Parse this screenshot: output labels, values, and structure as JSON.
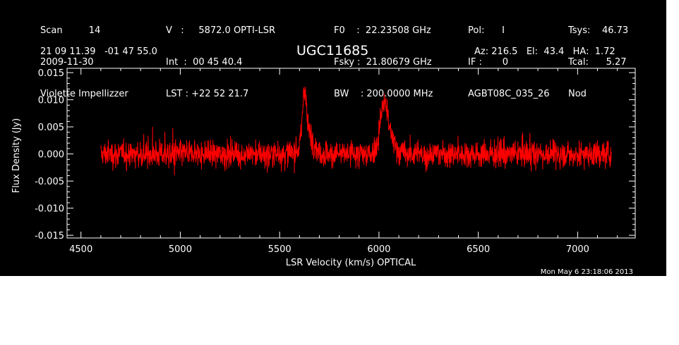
{
  "header": {
    "col1": [
      "Scan         14",
      "2009-11-30",
      "Violette Impellizzer"
    ],
    "col2": [
      "V   :     5872.0 OPTI-LSR",
      "Int  :  00 45 40.4",
      "LST : +22 52 21.7"
    ],
    "col3": [
      "F0    :  22.23508 GHz",
      "Fsky :  21.80679 GHz",
      "BW    : 200.0000 MHz"
    ],
    "col4": [
      "Pol:      I",
      "IF :       0",
      "AGBT08C_035_26"
    ],
    "col5": [
      "Tsys:    46.73",
      "Tcal:      5.27",
      "Nod"
    ],
    "coords": "21 09 11.39   -01 47 55.0",
    "source": "UGC11685",
    "pointing": "Az: 216.5   El:  43.4   HA:  1.72",
    "timestamp": "Mon May  6 23:18:06 2013"
  },
  "colors": {
    "background": "#000000",
    "axes": "#ffffff",
    "trace": "#ff0000"
  },
  "chart_data": {
    "type": "line",
    "xlabel": "LSR Velocity (km/s) OPTICAL",
    "ylabel": "Flux Density (Jy)",
    "xlim": [
      4430,
      7290
    ],
    "ylim": [
      -0.0155,
      0.0158
    ],
    "xticks": [
      4500,
      5000,
      5500,
      6000,
      6500,
      7000
    ],
    "xtick_labels": [
      "4500",
      "5000",
      "5500",
      "6000",
      "6500",
      "7000"
    ],
    "yticks": [
      0.015,
      0.01,
      0.005,
      0.0,
      -0.005,
      -0.01,
      -0.015
    ],
    "ytick_labels": [
      "0.015",
      "0.010",
      "0.005",
      "0.000",
      "-0.005",
      "-0.010",
      "-0.015"
    ],
    "series": [
      {
        "x_range": [
          4600,
          7170
        ],
        "noise_rms": 0.0028,
        "features": [
          {
            "x": 5625,
            "peak": 0.0142,
            "width": 12
          },
          {
            "x": 5640,
            "peak": 0.007,
            "width": 40
          },
          {
            "x": 6025,
            "peak": 0.0105,
            "width": 25
          },
          {
            "x": 6040,
            "peak": 0.006,
            "width": 45
          }
        ]
      }
    ]
  }
}
